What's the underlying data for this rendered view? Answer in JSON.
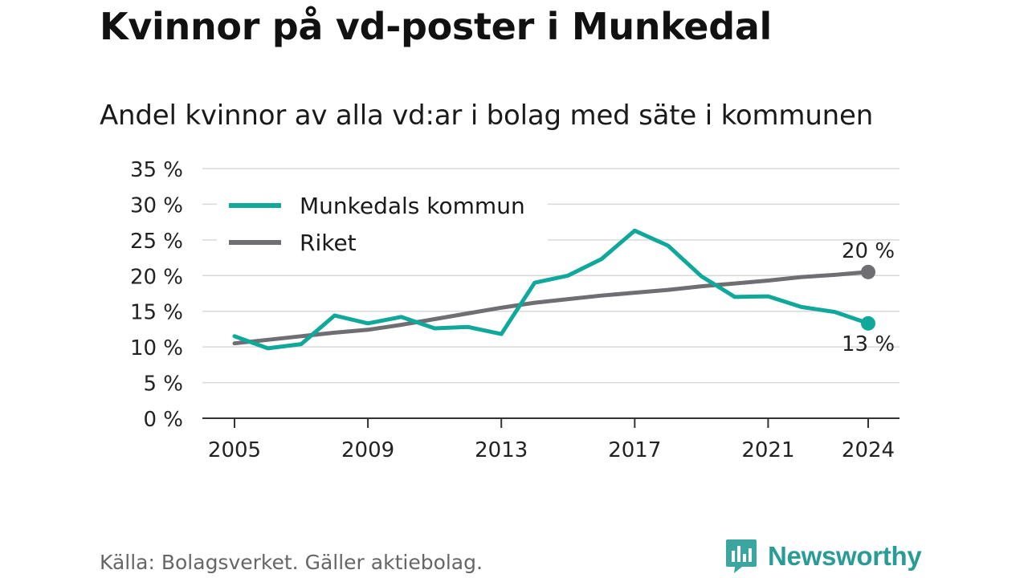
{
  "title": "Kvinnor på vd-poster i Munkedal",
  "subtitle": "Andel kvinnor av alla vd:ar i bolag med säte i kommunen",
  "source": "Källa: Bolagsverket. Gäller aktiebolag.",
  "brand": {
    "name": "Newsworthy",
    "icon": "newsworthy-logo-icon",
    "color": "#2a9c96"
  },
  "chart_data": {
    "type": "line",
    "x": [
      2005,
      2006,
      2007,
      2008,
      2009,
      2010,
      2011,
      2012,
      2013,
      2014,
      2015,
      2016,
      2017,
      2018,
      2019,
      2020,
      2021,
      2022,
      2023,
      2024
    ],
    "xticks": [
      2005,
      2009,
      2013,
      2017,
      2021,
      2024
    ],
    "xtick_labels": [
      "2005",
      "2009",
      "2013",
      "2017",
      "2021",
      "2024"
    ],
    "ylim": [
      0,
      35
    ],
    "yticks": [
      0,
      5,
      10,
      15,
      20,
      25,
      30,
      35
    ],
    "ytick_labels": [
      "0 %",
      "5 %",
      "10 %",
      "15 %",
      "20 %",
      "25 %",
      "30 %",
      "35 %"
    ],
    "grid": true,
    "legend_position": "top-left",
    "series": [
      {
        "name": "Munkedals kommun",
        "color": "#0fa89b",
        "values": [
          11.5,
          9.8,
          10.4,
          14.4,
          13.3,
          14.2,
          12.6,
          12.8,
          11.8,
          19.0,
          20.0,
          22.3,
          26.3,
          24.2,
          19.9,
          17.0,
          17.1,
          15.6,
          14.9,
          13.3
        ],
        "end_label": "13 %"
      },
      {
        "name": "Riket",
        "color": "#6e6e73",
        "values": [
          10.5,
          11.0,
          11.5,
          12.0,
          12.4,
          13.1,
          13.9,
          14.7,
          15.5,
          16.2,
          16.7,
          17.2,
          17.6,
          18.0,
          18.5,
          18.9,
          19.3,
          19.8,
          20.1,
          20.5
        ],
        "end_label": "20 %"
      }
    ]
  }
}
